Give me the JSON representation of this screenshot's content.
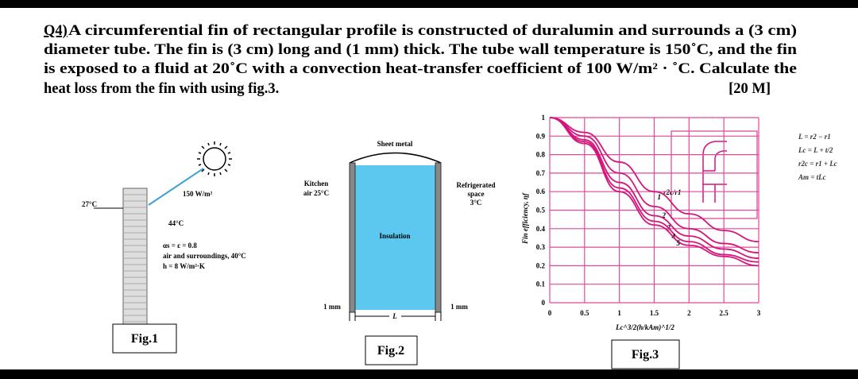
{
  "question": {
    "number": "Q4)",
    "lines": [
      "A circumferential fin of rectangular profile is constructed of duralumin and surrounds a (3 cm)",
      "diameter tube. The fin is (3 cm) long and (1 mm) thick. The tube wall temperature is 150˚C, and the fin",
      "is exposed to a fluid at 20˚C with a convection heat-transfer coefficient of 100 W/m² · ˚C. Calculate the",
      "heat loss from the fin with using fig.3."
    ],
    "marks": "[20 M]"
  },
  "fig1": {
    "caption": "Fig.1",
    "outside_temp": "27°C",
    "radiation": "150 W/m²",
    "surface_temp": "44°C",
    "line1": "αs = ε = 0.8",
    "line2": "air and surroundings, 40°C",
    "line3": "h = 8 W/m²·K"
  },
  "fig2": {
    "caption": "Fig.2",
    "sheet_metal": "Sheet metal",
    "kitchen": [
      "Kitchen",
      "air 25°C"
    ],
    "refrigerated": [
      "Refrigerated",
      "space",
      "3°C"
    ],
    "insulation": "Insulation",
    "thickness": "1 mm",
    "length": "L"
  },
  "chart_data": {
    "type": "line",
    "caption": "Fig.3",
    "x_label": "Lc^3/2(h/kAm)^1/2",
    "y_label": "Fin efficiency, ηf",
    "curve_label": "r2c/r1",
    "formulas": [
      "L = r2 − r1",
      "Lc = L + t/2",
      "r2c = r1 + Lc",
      "Am = tLc"
    ],
    "x": [
      0,
      0.5,
      1,
      1.5,
      2,
      2.5,
      3
    ],
    "series": [
      {
        "name": "1",
        "color": "#d4157c",
        "values": [
          1,
          0.92,
          0.76,
          0.6,
          0.48,
          0.39,
          0.33
        ]
      },
      {
        "name": "2",
        "color": "#d4157c",
        "values": [
          1,
          0.9,
          0.7,
          0.52,
          0.4,
          0.32,
          0.27
        ]
      },
      {
        "name": "3",
        "color": "#d4157c",
        "values": [
          1,
          0.88,
          0.65,
          0.47,
          0.36,
          0.29,
          0.24
        ]
      },
      {
        "name": "4",
        "color": "#d4157c",
        "values": [
          1,
          0.87,
          0.62,
          0.44,
          0.33,
          0.26,
          0.22
        ]
      },
      {
        "name": "5",
        "color": "#d4157c",
        "values": [
          1,
          0.86,
          0.6,
          0.42,
          0.31,
          0.25,
          0.2
        ]
      }
    ],
    "xlim": [
      0,
      3
    ],
    "ylim": [
      0,
      1
    ],
    "xticks": [
      0,
      0.5,
      1,
      1.5,
      2,
      2.5,
      3
    ],
    "yticks": [
      0,
      0.1,
      0.2,
      0.3,
      0.4,
      0.5,
      0.6,
      0.7,
      0.8,
      0.9,
      1
    ],
    "grid": true,
    "grid_color": "#e0499a"
  }
}
